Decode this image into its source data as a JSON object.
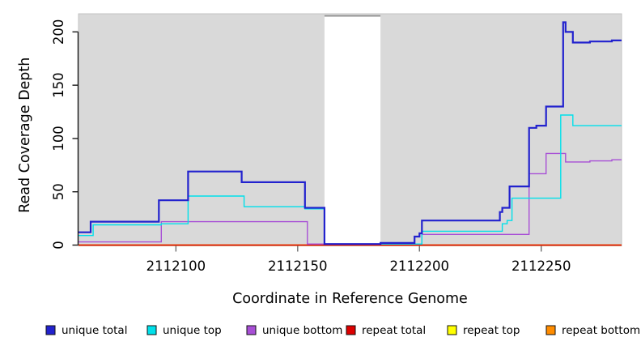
{
  "chart_data": {
    "type": "line",
    "step": true,
    "title": "",
    "xlabel": "Coordinate in Reference Genome",
    "ylabel": "Read Coverage Depth",
    "xlim": [
      2112060,
      2112283
    ],
    "ylim": [
      0,
      217
    ],
    "x_ticks": [
      "2112100",
      "2112150",
      "2112200",
      "2112250"
    ],
    "x_tick_values": [
      2112100,
      2112150,
      2112200,
      2112250
    ],
    "y_ticks": [
      "0",
      "50",
      "100",
      "150",
      "200"
    ],
    "y_tick_values": [
      0,
      50,
      100,
      150,
      200
    ],
    "grid": false,
    "panel_background": "#d9d9d9",
    "panel_border": "#c3c3c3",
    "masked_region": {
      "start": 2112161,
      "end": 2112184,
      "fill": "#ffffff",
      "top_border": "#8f8f8f"
    },
    "legend_position": "bottom",
    "series": [
      {
        "name": "unique total",
        "color": "#2222CE",
        "width": 2.2,
        "points": [
          [
            2112060,
            12
          ],
          [
            2112065,
            22
          ],
          [
            2112093,
            42
          ],
          [
            2112105,
            69
          ],
          [
            2112127,
            59
          ],
          [
            2112153,
            35
          ],
          [
            2112161,
            1
          ],
          [
            2112184,
            2
          ],
          [
            2112198,
            8
          ],
          [
            2112200,
            11
          ],
          [
            2112201,
            23
          ],
          [
            2112233,
            31
          ],
          [
            2112234,
            35
          ],
          [
            2112237,
            55
          ],
          [
            2112245,
            110
          ],
          [
            2112248,
            112
          ],
          [
            2112252,
            130
          ],
          [
            2112259,
            209
          ],
          [
            2112260,
            200
          ],
          [
            2112263,
            190
          ],
          [
            2112270,
            191
          ],
          [
            2112279,
            192
          ]
        ]
      },
      {
        "name": "unique top",
        "color": "#00E0EA",
        "width": 1.4,
        "points": [
          [
            2112060,
            9
          ],
          [
            2112066,
            19
          ],
          [
            2112094,
            20
          ],
          [
            2112105,
            46
          ],
          [
            2112128,
            36
          ],
          [
            2112153,
            34
          ],
          [
            2112161,
            1
          ],
          [
            2112184,
            1
          ],
          [
            2112201,
            13
          ],
          [
            2112234,
            20
          ],
          [
            2112236,
            23
          ],
          [
            2112238,
            44
          ],
          [
            2112258,
            122
          ],
          [
            2112263,
            112
          ]
        ]
      },
      {
        "name": "unique bottom",
        "color": "#A84FD6",
        "width": 1.4,
        "points": [
          [
            2112060,
            3
          ],
          [
            2112094,
            22
          ],
          [
            2112154,
            1
          ],
          [
            2112201,
            10
          ],
          [
            2112245,
            67
          ],
          [
            2112252,
            86
          ],
          [
            2112260,
            78
          ],
          [
            2112270,
            79
          ],
          [
            2112279,
            80
          ]
        ]
      },
      {
        "name": "repeat total",
        "color": "#DD0000",
        "width": 1.4,
        "points": [
          [
            2112060,
            0
          ]
        ]
      },
      {
        "name": "repeat top",
        "color": "#FFFF00",
        "width": 1.4,
        "points": [
          [
            2112060,
            0
          ]
        ]
      },
      {
        "name": "repeat bottom",
        "color": "#FF8C00",
        "width": 1.8,
        "points": [
          [
            2112060,
            0
          ]
        ]
      }
    ]
  }
}
